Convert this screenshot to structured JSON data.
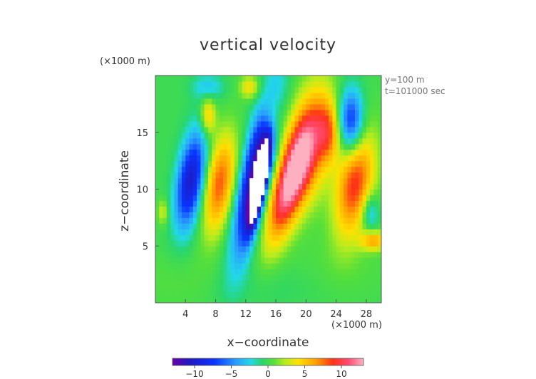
{
  "chart_data": {
    "type": "heatmap",
    "title": "vertical velocity",
    "xlabel": "x−coordinate",
    "ylabel": "z−coordinate",
    "x_unit": "(×1000 m)",
    "y_unit": "(×1000 m)",
    "annotations": [
      "y=100 m",
      "t=101000 sec"
    ],
    "xlim": [
      0,
      30
    ],
    "ylim": [
      0,
      20
    ],
    "x_ticks": [
      4,
      8,
      12,
      16,
      20,
      24,
      28
    ],
    "y_ticks": [
      5,
      10,
      15
    ],
    "x_tick_labels": [
      "4",
      "8",
      "12",
      "16",
      "20",
      "24",
      "28"
    ],
    "y_tick_labels": [
      "5",
      "10",
      "15"
    ],
    "grid": false,
    "colorbar": {
      "range": [
        -13,
        13
      ],
      "ticks": [
        -10,
        -5,
        0,
        5,
        10
      ],
      "tick_labels": [
        "−10",
        "−5",
        "0",
        "5",
        "10"
      ],
      "placement": "bottom"
    },
    "background_value": 0,
    "features": [
      {
        "x": 4.7,
        "z": 10.8,
        "sx": 1.3,
        "sz": 3.0,
        "tilt": 0.2,
        "value": -10
      },
      {
        "x": 8.5,
        "z": 10.5,
        "sx": 1.4,
        "sz": 3.0,
        "tilt": 0.2,
        "value": 8
      },
      {
        "x": 13.4,
        "z": 11.5,
        "sx": 1.3,
        "sz": 4.8,
        "tilt": 0.3,
        "value": -13
      },
      {
        "x": 13.8,
        "z": 10.5,
        "sx": 0.5,
        "sz": 2.2,
        "tilt": 0.3,
        "value": -22
      },
      {
        "x": 17.8,
        "z": 10.5,
        "sx": 1.5,
        "sz": 3.5,
        "tilt": 0.4,
        "value": 12
      },
      {
        "x": 20.5,
        "z": 14.0,
        "sx": 2.0,
        "sz": 3.5,
        "tilt": 0.2,
        "value": 8
      },
      {
        "x": 23.0,
        "z": 15.0,
        "sx": 1.0,
        "sz": 1.8,
        "tilt": 0.0,
        "value": 5
      },
      {
        "x": 26.5,
        "z": 10.5,
        "sx": 1.7,
        "sz": 3.2,
        "tilt": 0.2,
        "value": 9
      },
      {
        "x": 26.0,
        "z": 16.0,
        "sx": 1.2,
        "sz": 2.0,
        "tilt": 0.0,
        "value": -8
      },
      {
        "x": 15.5,
        "z": 16.5,
        "sx": 1.0,
        "sz": 1.6,
        "tilt": 0.0,
        "value": 4
      },
      {
        "x": 7.0,
        "z": 16.5,
        "sx": 0.7,
        "sz": 1.2,
        "tilt": 0.0,
        "value": 5
      },
      {
        "x": 7.0,
        "z": 19.0,
        "sx": 1.5,
        "sz": 0.8,
        "tilt": 0.0,
        "value": -3
      },
      {
        "x": 12.5,
        "z": 19.0,
        "sx": 0.9,
        "sz": 0.7,
        "tilt": 0.0,
        "value": 4
      },
      {
        "x": 29.0,
        "z": 5.5,
        "sx": 1.2,
        "sz": 0.6,
        "tilt": 0.0,
        "value": 6
      },
      {
        "x": 28.5,
        "z": 8.0,
        "sx": 0.8,
        "sz": 1.2,
        "tilt": 0.0,
        "value": -4
      },
      {
        "x": 1.0,
        "z": 8.0,
        "sx": 0.5,
        "sz": 0.8,
        "tilt": 0.0,
        "value": 3
      },
      {
        "x": 3.0,
        "z": 2.0,
        "sx": 4.0,
        "sz": 2.0,
        "tilt": 0.0,
        "value": 0.7
      },
      {
        "x": 15.0,
        "z": 1.5,
        "sx": 6.0,
        "sz": 1.5,
        "tilt": 0.0,
        "value": -0.6
      },
      {
        "x": 25.0,
        "z": 3.0,
        "sx": 5.0,
        "sz": 2.0,
        "tilt": 0.0,
        "value": 0.6
      }
    ]
  }
}
